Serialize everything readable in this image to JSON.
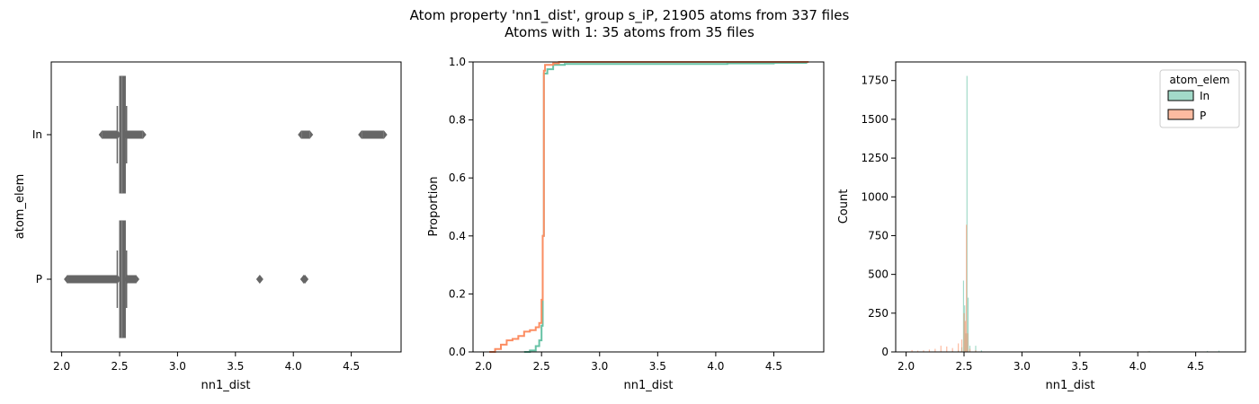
{
  "figure": {
    "title_line1": "Atom property 'nn1_dist', group s_iP, 21905 atoms from 337 files",
    "title_line2": "Atoms with 1: 35 atoms from 35 files"
  },
  "colors": {
    "In": "#66c2a5",
    "P": "#fc8d62",
    "box": "#666666"
  },
  "chart_data": [
    {
      "type": "box",
      "xlabel": "nn1_dist",
      "ylabel": "atom_elem",
      "xlim": [
        1.91,
        4.93
      ],
      "xticks": [
        "2.0",
        "2.5",
        "3.0",
        "3.5",
        "4.0",
        "4.5"
      ],
      "categories": [
        "In",
        "P"
      ],
      "boxes": [
        {
          "name": "In",
          "q1": 2.5,
          "median": 2.52,
          "q3": 2.55,
          "whisker_low": 2.48,
          "whisker_high": 2.56,
          "outlier_ranges": [
            [
              2.35,
              2.48
            ],
            [
              2.56,
              2.7
            ],
            [
              4.07,
              4.14
            ],
            [
              4.59,
              4.78
            ]
          ]
        },
        {
          "name": "P",
          "q1": 2.5,
          "median": 2.52,
          "q3": 2.55,
          "whisker_low": 2.48,
          "whisker_high": 2.56,
          "outlier_ranges": [
            [
              2.05,
              2.48
            ],
            [
              2.57,
              2.64
            ]
          ],
          "outliers": [
            3.71,
            4.09,
            4.1
          ]
        }
      ]
    },
    {
      "type": "line",
      "subtype": "ecdf",
      "xlabel": "nn1_dist",
      "ylabel": "Proportion",
      "xlim": [
        1.91,
        4.93
      ],
      "ylim": [
        0,
        1
      ],
      "xticks": [
        "2.0",
        "2.5",
        "3.0",
        "3.5",
        "4.0",
        "4.5"
      ],
      "yticks": [
        "0.0",
        "0.2",
        "0.4",
        "0.6",
        "0.8",
        "1.0"
      ],
      "series": [
        {
          "name": "In",
          "points": [
            [
              2.35,
              0
            ],
            [
              2.4,
              0.005
            ],
            [
              2.45,
              0.02
            ],
            [
              2.48,
              0.04
            ],
            [
              2.5,
              0.09
            ],
            [
              2.51,
              0.4
            ],
            [
              2.52,
              0.96
            ],
            [
              2.55,
              0.975
            ],
            [
              2.58,
              0.975
            ],
            [
              2.6,
              0.99
            ],
            [
              2.7,
              0.993
            ],
            [
              4.0,
              0.993
            ],
            [
              4.1,
              0.995
            ],
            [
              4.5,
              0.997
            ],
            [
              4.78,
              1.0
            ]
          ]
        },
        {
          "name": "P",
          "points": [
            [
              2.05,
              0
            ],
            [
              2.1,
              0.01
            ],
            [
              2.15,
              0.025
            ],
            [
              2.2,
              0.04
            ],
            [
              2.25,
              0.045
            ],
            [
              2.3,
              0.055
            ],
            [
              2.35,
              0.07
            ],
            [
              2.4,
              0.075
            ],
            [
              2.45,
              0.085
            ],
            [
              2.48,
              0.1
            ],
            [
              2.5,
              0.18
            ],
            [
              2.51,
              0.4
            ],
            [
              2.52,
              0.97
            ],
            [
              2.53,
              0.99
            ],
            [
              2.6,
              0.995
            ],
            [
              2.65,
              1.0
            ],
            [
              4.8,
              1.0
            ]
          ]
        }
      ]
    },
    {
      "type": "bar",
      "subtype": "histogram",
      "xlabel": "nn1_dist",
      "ylabel": "Count",
      "xlim": [
        1.91,
        4.93
      ],
      "ylim": [
        0,
        1870
      ],
      "xticks": [
        "2.0",
        "2.5",
        "3.0",
        "3.5",
        "4.0",
        "4.5"
      ],
      "yticks": [
        "0",
        "250",
        "500",
        "750",
        "1000",
        "1250",
        "1500",
        "1750"
      ],
      "legend": {
        "title": "atom_elem",
        "placement": "top-right",
        "entries": [
          "In",
          "P"
        ]
      },
      "series": [
        {
          "name": "In",
          "bins": [
            [
              2.4,
              5
            ],
            [
              2.45,
              8
            ],
            [
              2.48,
              30
            ],
            [
              2.495,
              460
            ],
            [
              2.505,
              300
            ],
            [
              2.515,
              120
            ],
            [
              2.525,
              1780
            ],
            [
              2.535,
              350
            ],
            [
              2.55,
              40
            ],
            [
              2.6,
              40
            ],
            [
              2.65,
              10
            ],
            [
              4.1,
              5
            ],
            [
              4.6,
              6
            ],
            [
              4.7,
              8
            ]
          ]
        },
        {
          "name": "P",
          "bins": [
            [
              2.05,
              12
            ],
            [
              2.1,
              8
            ],
            [
              2.15,
              10
            ],
            [
              2.2,
              15
            ],
            [
              2.25,
              20
            ],
            [
              2.3,
              40
            ],
            [
              2.35,
              35
            ],
            [
              2.4,
              25
            ],
            [
              2.45,
              55
            ],
            [
              2.48,
              80
            ],
            [
              2.5,
              250
            ],
            [
              2.51,
              200
            ],
            [
              2.52,
              820
            ],
            [
              2.53,
              120
            ],
            [
              2.55,
              20
            ],
            [
              2.6,
              10
            ],
            [
              3.71,
              3
            ],
            [
              4.09,
              4
            ]
          ]
        }
      ]
    }
  ]
}
